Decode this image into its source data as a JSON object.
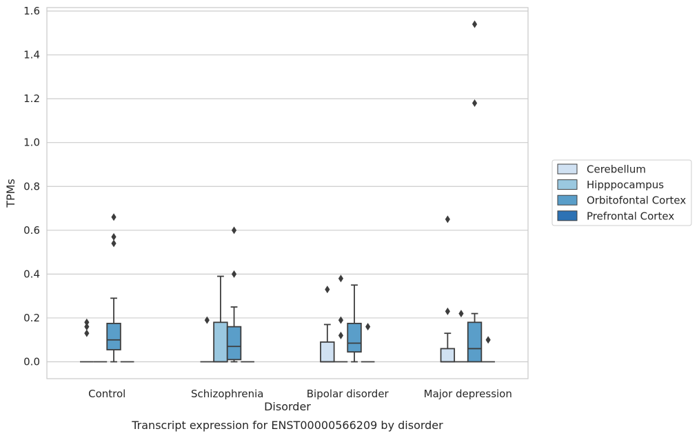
{
  "chart_data": {
    "type": "box",
    "caption": "Transcript expression for ENST00000566209 by disorder",
    "xlabel": "Disorder",
    "ylabel": "TPMs",
    "ylim": [
      -0.075,
      1.62
    ],
    "yticks": [
      0.0,
      0.2,
      0.4,
      0.6,
      0.8,
      1.0,
      1.2,
      1.4,
      1.6
    ],
    "ytick_labels": [
      "0.0",
      "0.2",
      "0.4",
      "0.6",
      "0.8",
      "1.0",
      "1.2",
      "1.4",
      "1.6"
    ],
    "grid": "horizontal",
    "legend_position": "right",
    "categories": [
      "Control",
      "Schizophrenia",
      "Bipolar disorder",
      "Major depression"
    ],
    "series": [
      {
        "name": "Cerebellum",
        "color": "#d0e1f2",
        "boxes": [
          {
            "q1": 0.0,
            "median": 0.0,
            "q3": 0.0,
            "whisker_low": 0.0,
            "whisker_high": 0.0,
            "outliers": [
              0.13,
              0.16,
              0.18
            ]
          },
          {
            "q1": 0.0,
            "median": 0.0,
            "q3": 0.0,
            "whisker_low": 0.0,
            "whisker_high": 0.0,
            "outliers": [
              0.19
            ]
          },
          {
            "q1": 0.0,
            "median": 0.0,
            "q3": 0.09,
            "whisker_low": 0.0,
            "whisker_high": 0.17,
            "outliers": [
              0.33
            ]
          },
          {
            "q1": 0.0,
            "median": 0.0,
            "q3": 0.06,
            "whisker_low": 0.0,
            "whisker_high": 0.13,
            "outliers": [
              0.23,
              0.65
            ]
          }
        ]
      },
      {
        "name": "Hipppocampus",
        "color": "#9ac8e0",
        "boxes": [
          {
            "q1": 0.0,
            "median": 0.0,
            "q3": 0.0,
            "whisker_low": 0.0,
            "whisker_high": 0.0,
            "outliers": []
          },
          {
            "q1": 0.0,
            "median": 0.0,
            "q3": 0.18,
            "whisker_low": 0.0,
            "whisker_high": 0.39,
            "outliers": []
          },
          {
            "q1": 0.0,
            "median": 0.0,
            "q3": 0.0,
            "whisker_low": 0.0,
            "whisker_high": 0.0,
            "outliers": [
              0.12,
              0.19,
              0.38
            ]
          },
          {
            "q1": 0.0,
            "median": 0.0,
            "q3": 0.0,
            "whisker_low": 0.0,
            "whisker_high": 0.0,
            "outliers": [
              0.22
            ]
          }
        ]
      },
      {
        "name": "Orbitofontal Cortex",
        "color": "#5a9ec9",
        "boxes": [
          {
            "q1": 0.055,
            "median": 0.1,
            "q3": 0.175,
            "whisker_low": 0.0,
            "whisker_high": 0.29,
            "outliers": [
              0.54,
              0.57,
              0.66
            ]
          },
          {
            "q1": 0.01,
            "median": 0.07,
            "q3": 0.16,
            "whisker_low": 0.0,
            "whisker_high": 0.25,
            "outliers": [
              0.4,
              0.6
            ]
          },
          {
            "q1": 0.045,
            "median": 0.085,
            "q3": 0.175,
            "whisker_low": 0.0,
            "whisker_high": 0.35,
            "outliers": []
          },
          {
            "q1": 0.0,
            "median": 0.06,
            "q3": 0.18,
            "whisker_low": 0.0,
            "whisker_high": 0.22,
            "outliers": [
              1.18,
              1.54
            ]
          }
        ]
      },
      {
        "name": "Prefrontal Cortex",
        "color": "#2d72b4",
        "boxes": [
          {
            "q1": 0.0,
            "median": 0.0,
            "q3": 0.0,
            "whisker_low": 0.0,
            "whisker_high": 0.0,
            "outliers": []
          },
          {
            "q1": 0.0,
            "median": 0.0,
            "q3": 0.0,
            "whisker_low": 0.0,
            "whisker_high": 0.0,
            "outliers": []
          },
          {
            "q1": 0.0,
            "median": 0.0,
            "q3": 0.0,
            "whisker_low": 0.0,
            "whisker_high": 0.0,
            "outliers": [
              0.16
            ]
          },
          {
            "q1": 0.0,
            "median": 0.0,
            "q3": 0.0,
            "whisker_low": 0.0,
            "whisker_high": 0.0,
            "outliers": [
              0.1
            ]
          }
        ]
      }
    ]
  }
}
